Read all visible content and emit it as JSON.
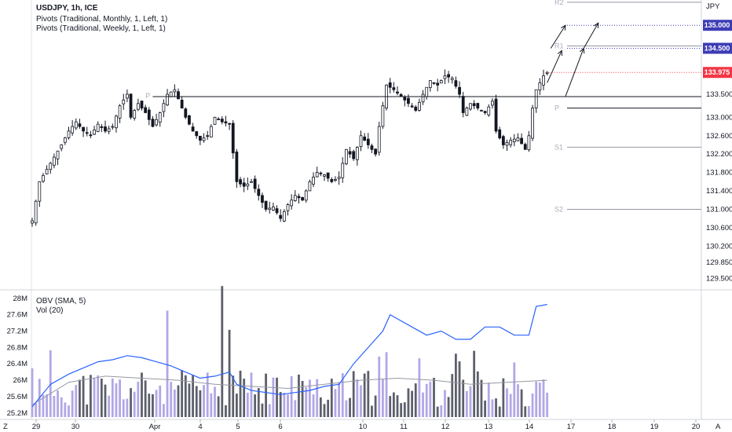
{
  "header": {
    "symbol_line": "USDJPY, 1h, ICE",
    "indicator_1": "Pivots (Traditional, Monthly, 1, Left, 1)",
    "indicator_2": "Pivots (Traditional, Weekly, 1, Left, 1)",
    "sub_indicator_1": "OBV (SMA, 5)",
    "sub_indicator_2": "Vol (20)"
  },
  "currency_label": "JPY",
  "price_tags": [
    {
      "value": "135.000",
      "price": 135.0,
      "color": "#3d3cb5"
    },
    {
      "value": "134.500",
      "price": 134.5,
      "color": "#3d3cb5"
    },
    {
      "value": "133.975",
      "price": 133.975,
      "color": "#f23645"
    }
  ],
  "colors": {
    "candle": "#131722",
    "obv": "#2962ff",
    "vol_up": "#b2a7e6",
    "vol_down": "#5d606b",
    "vol_ma": "#9598a1"
  },
  "bottom_left_label": "Z",
  "bottom_right_label": "A",
  "chart_data": [
    {
      "type": "candlestick",
      "title": "USDJPY, 1h, ICE",
      "ylim": [
        129.3,
        135.55
      ],
      "y_ticks": [
        129.5,
        129.85,
        130.2,
        130.6,
        131.0,
        131.4,
        131.8,
        132.2,
        132.6,
        133.0,
        133.5
      ],
      "y_tick_labels": [
        "129.500",
        "129.850",
        "130.200",
        "130.600",
        "131.000",
        "131.400",
        "131.800",
        "132.200",
        "132.600",
        "133.000",
        "133.500"
      ],
      "x_tick_labels": [
        "29",
        "30",
        "Apr",
        "4",
        "5",
        "6",
        "10",
        "11",
        "12",
        "13",
        "14",
        "17",
        "18",
        "19",
        "20"
      ],
      "close_path": [
        [
          0,
          130.75
        ],
        [
          2,
          131.6
        ],
        [
          5,
          132.0
        ],
        [
          8,
          132.4
        ],
        [
          10,
          132.7
        ],
        [
          12,
          132.9
        ],
        [
          14,
          132.7
        ],
        [
          16,
          132.6
        ],
        [
          18,
          132.85
        ],
        [
          20,
          132.7
        ],
        [
          22,
          132.8
        ],
        [
          24,
          133.25
        ],
        [
          26,
          133.5
        ],
        [
          27,
          133.0
        ],
        [
          29,
          133.3
        ],
        [
          31,
          133.1
        ],
        [
          33,
          132.8
        ],
        [
          35,
          133.1
        ],
        [
          37,
          133.5
        ],
        [
          39,
          133.6
        ],
        [
          40,
          133.4
        ],
        [
          42,
          133.0
        ],
        [
          44,
          132.7
        ],
        [
          46,
          132.5
        ],
        [
          48,
          132.6
        ],
        [
          50,
          133.0
        ],
        [
          52,
          132.9
        ],
        [
          54,
          132.85
        ],
        [
          56,
          131.6
        ],
        [
          58,
          131.5
        ],
        [
          60,
          131.6
        ],
        [
          62,
          131.3
        ],
        [
          64,
          131.0
        ],
        [
          66,
          131.05
        ],
        [
          68,
          130.8
        ],
        [
          70,
          131.1
        ],
        [
          72,
          131.3
        ],
        [
          74,
          131.2
        ],
        [
          76,
          131.6
        ],
        [
          78,
          131.8
        ],
        [
          80,
          131.75
        ],
        [
          82,
          131.6
        ],
        [
          84,
          131.7
        ],
        [
          86,
          132.3
        ],
        [
          88,
          132.1
        ],
        [
          90,
          132.6
        ],
        [
          92,
          132.4
        ],
        [
          94,
          132.2
        ],
        [
          95,
          132.8
        ],
        [
          97,
          133.7
        ],
        [
          99,
          133.6
        ],
        [
          101,
          133.45
        ],
        [
          103,
          133.3
        ],
        [
          105,
          133.15
        ],
        [
          107,
          133.5
        ],
        [
          109,
          133.8
        ],
        [
          111,
          133.7
        ],
        [
          113,
          133.9
        ],
        [
          115,
          133.85
        ],
        [
          117,
          133.5
        ],
        [
          118,
          133.1
        ],
        [
          120,
          133.3
        ],
        [
          122,
          133.2
        ],
        [
          124,
          133.1
        ],
        [
          126,
          133.35
        ],
        [
          127,
          132.7
        ],
        [
          129,
          132.4
        ],
        [
          131,
          132.5
        ],
        [
          133,
          132.55
        ],
        [
          135,
          132.3
        ],
        [
          136,
          132.6
        ],
        [
          137,
          133.2
        ],
        [
          138,
          133.6
        ],
        [
          140,
          133.9
        ],
        [
          141,
          133.975
        ]
      ],
      "pivots_monthly": [
        {
          "label": "R2",
          "price": 135.5
        },
        {
          "label": "R1",
          "price": 134.55
        },
        {
          "label": "P",
          "price": 133.2
        },
        {
          "label": "S1",
          "price": 132.35
        },
        {
          "label": "S2",
          "price": 131.0
        }
      ],
      "pivot_weekly": {
        "label": "P",
        "price": 133.45
      },
      "annotation_lines": [
        135.0,
        134.5
      ],
      "arrows": [
        {
          "from": [
            141,
            133.75
          ],
          "to": [
            145,
            134.45
          ]
        },
        {
          "from": [
            142,
            134.5
          ],
          "to": [
            146,
            135.0
          ]
        },
        {
          "from": [
            146,
            133.45
          ],
          "to": [
            151,
            134.5
          ]
        },
        {
          "from": [
            151,
            134.5
          ],
          "to": [
            155,
            135.05
          ]
        }
      ]
    },
    {
      "type": "line+bar",
      "series": [
        {
          "name": "OBV (SMA, 5)",
          "y_range": [
            25.2,
            28.0
          ]
        },
        {
          "name": "Vol (20)"
        }
      ],
      "y_ticks": [
        25.2,
        25.6,
        26.0,
        26.4,
        26.8,
        27.2,
        27.6,
        28.0
      ],
      "y_tick_labels": [
        "25.2M",
        "25.6M",
        "26M",
        "26.4M",
        "26.8M",
        "27.2M",
        "27.6M",
        "28M"
      ],
      "obv_path": [
        [
          0,
          25.35
        ],
        [
          5,
          25.9
        ],
        [
          10,
          26.15
        ],
        [
          14,
          26.3
        ],
        [
          18,
          26.45
        ],
        [
          22,
          26.5
        ],
        [
          26,
          26.6
        ],
        [
          30,
          26.55
        ],
        [
          34,
          26.45
        ],
        [
          38,
          26.35
        ],
        [
          42,
          26.2
        ],
        [
          46,
          26.05
        ],
        [
          50,
          26.1
        ],
        [
          54,
          26.2
        ],
        [
          56,
          25.9
        ],
        [
          60,
          25.75
        ],
        [
          64,
          25.7
        ],
        [
          68,
          25.65
        ],
        [
          72,
          25.7
        ],
        [
          76,
          25.75
        ],
        [
          80,
          25.85
        ],
        [
          84,
          25.9
        ],
        [
          88,
          26.4
        ],
        [
          92,
          26.8
        ],
        [
          96,
          27.2
        ],
        [
          98,
          27.6
        ],
        [
          100,
          27.5
        ],
        [
          104,
          27.3
        ],
        [
          108,
          27.1
        ],
        [
          112,
          27.2
        ],
        [
          116,
          27.0
        ],
        [
          120,
          27.0
        ],
        [
          124,
          27.3
        ],
        [
          128,
          27.3
        ],
        [
          132,
          27.1
        ],
        [
          136,
          27.1
        ],
        [
          138,
          27.8
        ],
        [
          141,
          27.85
        ]
      ],
      "vol_ma_path": [
        [
          0,
          25.4
        ],
        [
          10,
          25.95
        ],
        [
          20,
          26.1
        ],
        [
          30,
          26.05
        ],
        [
          40,
          26.0
        ],
        [
          50,
          25.9
        ],
        [
          60,
          25.85
        ],
        [
          70,
          25.8
        ],
        [
          80,
          25.9
        ],
        [
          90,
          26.0
        ],
        [
          100,
          26.05
        ],
        [
          110,
          26.0
        ],
        [
          120,
          25.9
        ],
        [
          130,
          25.95
        ],
        [
          141,
          26.0
        ]
      ]
    }
  ]
}
